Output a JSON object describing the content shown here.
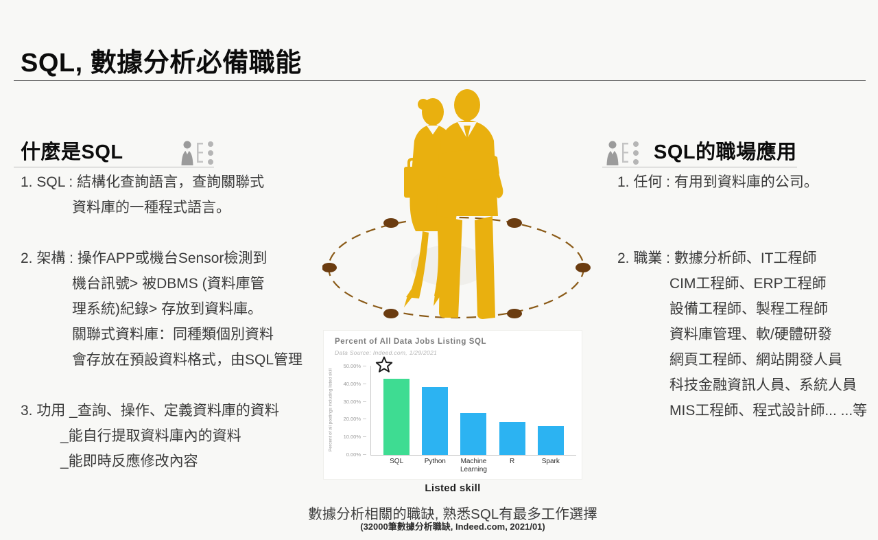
{
  "page": {
    "title": "SQL, 數據分析必備職能"
  },
  "left_section": {
    "heading": "什麼是SQL",
    "items": [
      {
        "lines": [
          "1. SQL : 結構化查詢語言，查詢關聯式",
          "資料庫的一種程式語言。"
        ]
      },
      {
        "lines": [
          "2. 架構 : 操作APP或機台Sensor檢測到",
          "機台訊號> 被DBMS (資料庫管",
          "理系統)紀錄> 存放到資料庫。",
          "關聯式資料庫：同種類個別資料",
          "會存放在預設資料格式，由SQL管理"
        ]
      },
      {
        "lines": [
          "3. 功用 _查詢、操作、定義資料庫的資料",
          "_能自行提取資料庫內的資料",
          "_能即時反應修改內容"
        ]
      }
    ]
  },
  "right_section": {
    "heading": "SQL的職場應用",
    "items": [
      {
        "lines": [
          "1. 任何 : 有用到資料庫的公司。"
        ]
      },
      {
        "lines": [
          "2. 職業 :  數據分析師、IT工程師",
          "CIM工程師、ERP工程師",
          "設備工程師、製程工程師",
          "資料庫管理、軟/硬體研發",
          "網頁工程師、網站開發人員",
          "科技金融資訊人員、系統人員",
          "MIS工程師、程式設計師... ...等"
        ]
      }
    ]
  },
  "chart_data": {
    "type": "bar",
    "title": "Percent of All Data Jobs Listing SQL",
    "subtitle": "Data Source: Indeed.com, 1/29/2021",
    "categories": [
      "SQL",
      "Python",
      "Machine Learning",
      "R",
      "Spark"
    ],
    "values": [
      42.7,
      38.2,
      23.3,
      18.6,
      16.3
    ],
    "ylabel": "Percent of all postings including listed skill",
    "xlabel": "Listed skill",
    "ylim": [
      0,
      50
    ],
    "yticks": [
      "50.00%",
      "40.00%",
      "30.00%",
      "20.00%",
      "10.00%",
      "0.00%"
    ],
    "highlight_index": 0,
    "highlight_color": "#3edc92",
    "bar_color": "#2cb3f2",
    "annotation": "star above SQL bar",
    "grid": false,
    "legend": "none"
  },
  "footer": {
    "caption": "數據分析相關的職缺, 熟悉SQL有最多工作選擇",
    "source_note": "(32000筆數據分析職缺, Indeed.com, 2021/01)"
  },
  "colors": {
    "silhouette_gold": "#e9b00f",
    "ellipse_dash_brown": "#8a5a17",
    "ellipse_dot_brown": "#6b3c10",
    "background": "#f8f8f6"
  }
}
